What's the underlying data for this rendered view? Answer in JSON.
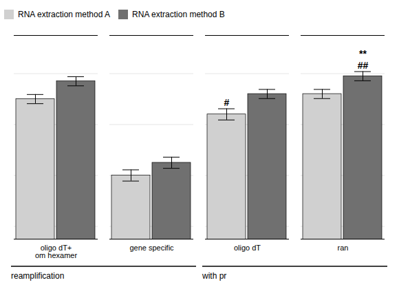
{
  "chart_data": {
    "type": "bar",
    "categories": [
      "oligo dT+\nom hexamer",
      "gene specific",
      "oligo dT",
      "ran"
    ],
    "series": [
      {
        "name": "RNA extraction method A",
        "color": "#d0d0d0",
        "values": [
          29.0,
          26.0,
          28.4,
          29.2
        ],
        "errors": [
          0.18,
          0.22,
          0.22,
          0.18
        ]
      },
      {
        "name": "RNA extraction method B",
        "color": "#707070",
        "values": [
          29.7,
          26.5,
          29.2,
          29.9
        ],
        "errors": [
          0.18,
          0.22,
          0.18,
          0.18
        ]
      }
    ],
    "ylim": [
      23.5,
      31.5
    ],
    "yticks": [
      24,
      26,
      28,
      30
    ],
    "grid": true,
    "legend": "upper left",
    "tick_labels": "x",
    "annotations": [
      {
        "text": "#",
        "category": "oligo dT",
        "series": "RNA extraction method A"
      },
      {
        "text": "##",
        "category": "ran",
        "series": "RNA extraction method B"
      },
      {
        "text": "**",
        "category": "ran",
        "series": "RNA extraction method B"
      },
      {
        "text": "reamplification",
        "categories": [
          "oligo dT+\nom hexamer",
          "gene specific"
        ]
      },
      {
        "text": "with pr",
        "categories": [
          "oligo dT",
          "ran"
        ]
      }
    ]
  }
}
